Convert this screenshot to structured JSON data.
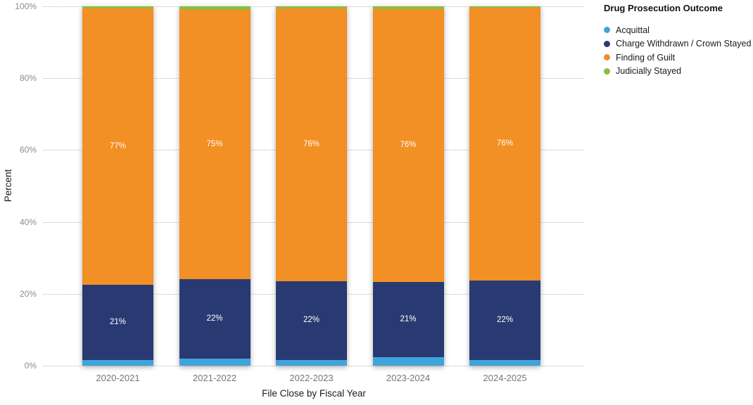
{
  "legend": {
    "title": "Drug Prosecution Outcome",
    "items": [
      {
        "label": "Acquittal",
        "color": "#3EA4DC"
      },
      {
        "label": "Charge Withdrawn / Crown Stayed",
        "color": "#293A73"
      },
      {
        "label": "Finding of Guilt",
        "color": "#F28F25"
      },
      {
        "label": "Judicially Stayed",
        "color": "#8CBB3E"
      }
    ]
  },
  "axes": {
    "y_title": "Percent",
    "x_title": "File Close by Fiscal Year",
    "y_ticks": [
      "100%",
      "80%",
      "60%",
      "40%",
      "20%",
      "0%"
    ]
  },
  "chart_data": {
    "type": "bar",
    "stacked": true,
    "percent_normalized": true,
    "title": "Drug Prosecution Outcome",
    "xlabel": "File Close by Fiscal Year",
    "ylabel": "Percent",
    "ylim": [
      0,
      100
    ],
    "grid": "horizontal dotted every 20%",
    "legend_position": "top-right",
    "categories": [
      "2020-2021",
      "2021-2022",
      "2022-2023",
      "2023-2024",
      "2024-2025"
    ],
    "series": [
      {
        "name": "Acquittal",
        "color": "#3EA4DC",
        "values": [
          1.5,
          2,
          1.5,
          2.3,
          1.6
        ],
        "labels": [
          "",
          "",
          "",
          "",
          ""
        ]
      },
      {
        "name": "Charge Withdrawn / Crown Stayed",
        "color": "#293A73",
        "values": [
          21,
          22,
          22,
          21,
          22
        ],
        "labels": [
          "21%",
          "22%",
          "22%",
          "21%",
          "22%"
        ]
      },
      {
        "name": "Finding of Guilt",
        "color": "#F28F25",
        "values": [
          77,
          75,
          76,
          76,
          76
        ],
        "labels": [
          "77%",
          "75%",
          "76%",
          "76%",
          "76%"
        ]
      },
      {
        "name": "Judicially Stayed",
        "color": "#8CBB3E",
        "values": [
          0.5,
          1,
          0.5,
          0.7,
          0.4
        ],
        "labels": [
          "",
          "",
          "",
          "",
          ""
        ]
      }
    ]
  }
}
